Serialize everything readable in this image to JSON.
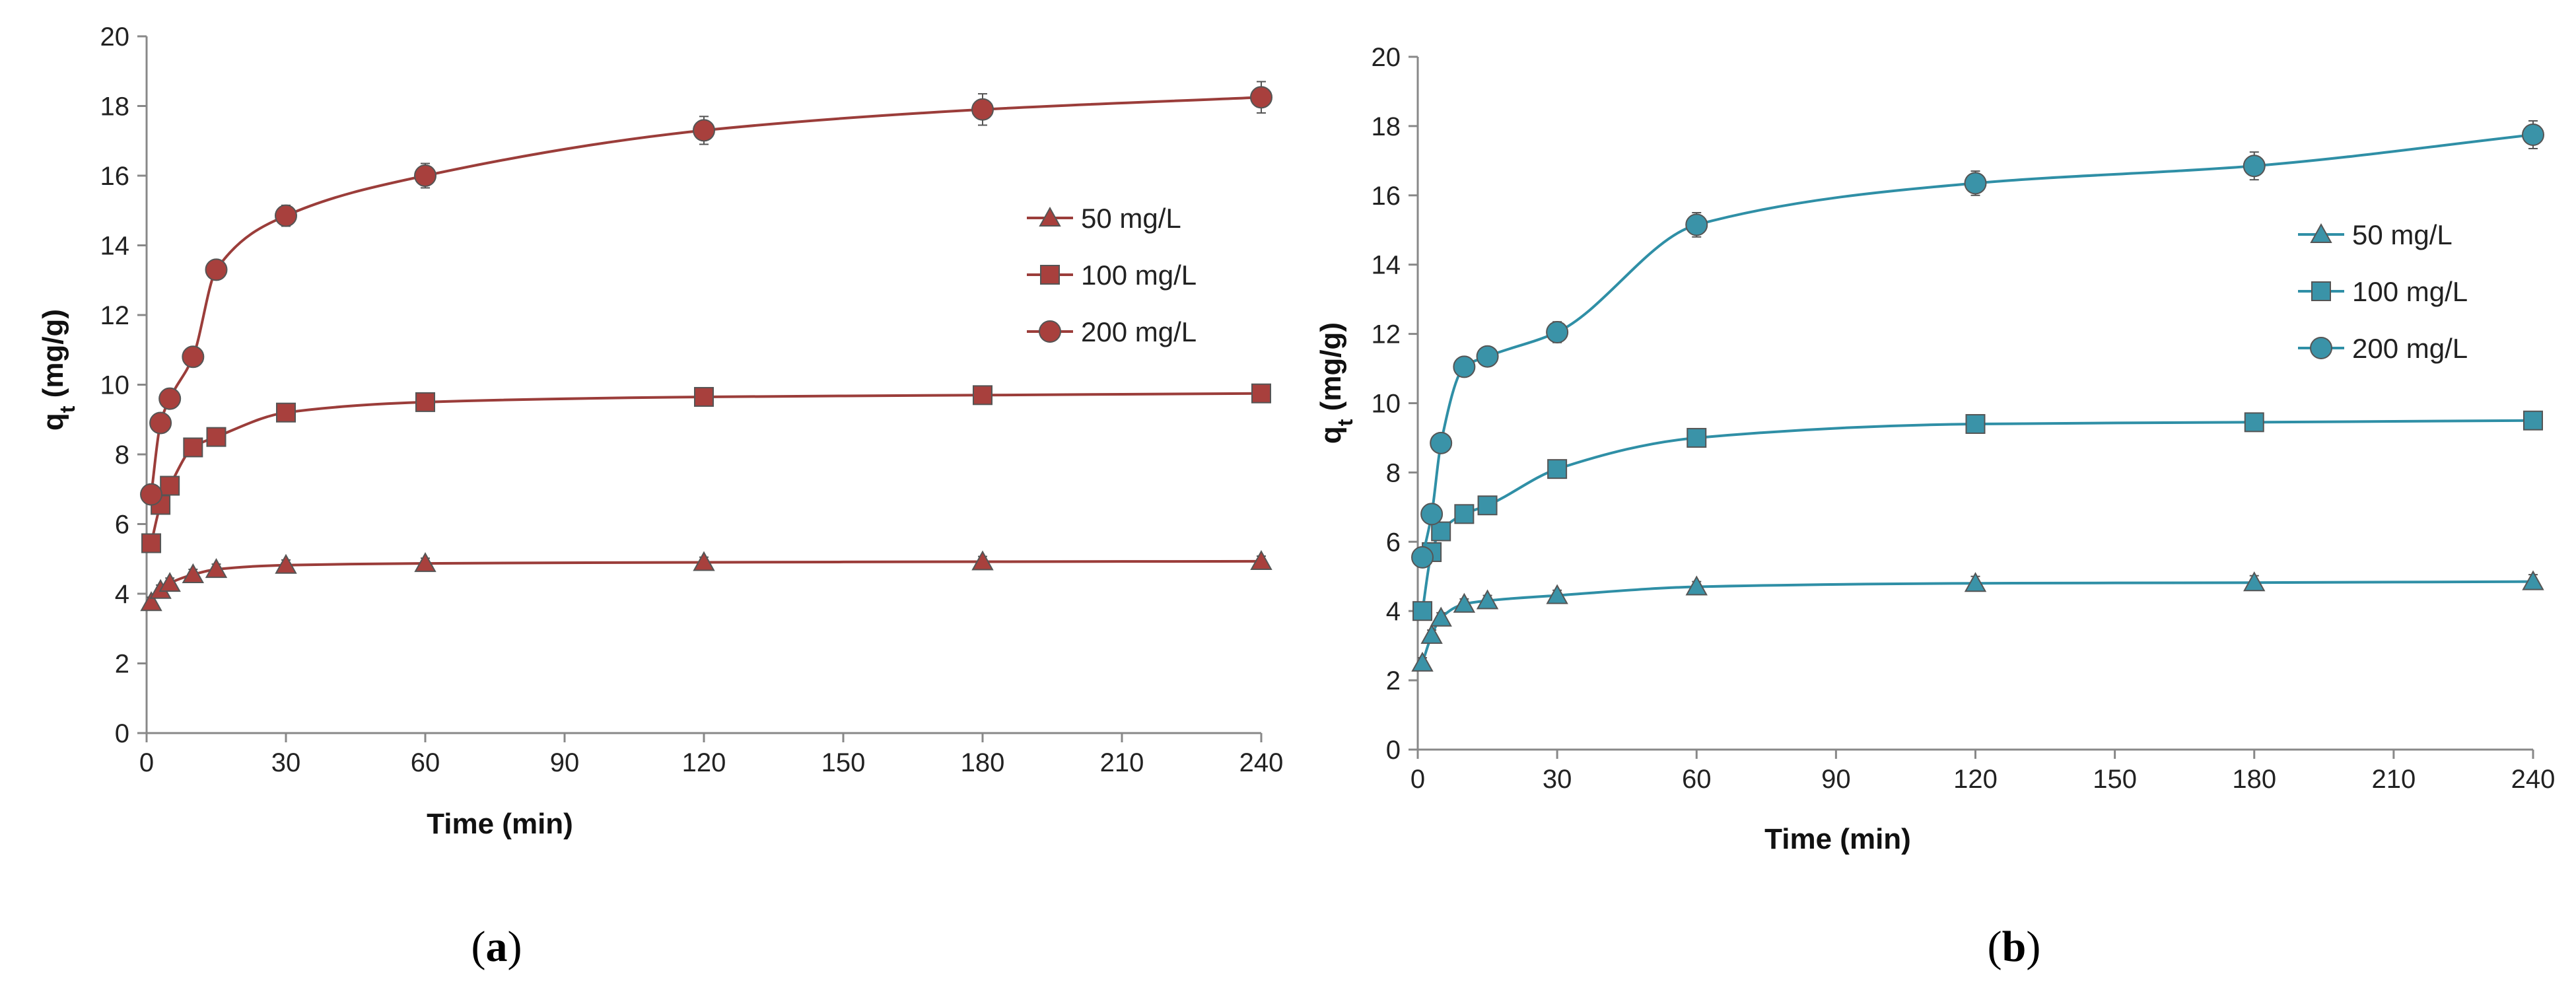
{
  "chart_data": [
    {
      "type": "line",
      "caption": {
        "open": "(",
        "letter": "a",
        "close": ")"
      },
      "title": "",
      "xlabel": "Time (min)",
      "ylabel": {
        "main": "q",
        "sub": "t",
        "rest": " (mg/g)"
      },
      "xlim": [
        0,
        240
      ],
      "ylim": [
        0,
        20
      ],
      "xticks": [
        0,
        30,
        60,
        90,
        120,
        150,
        180,
        210,
        240
      ],
      "yticks": [
        0,
        2,
        4,
        6,
        8,
        10,
        12,
        14,
        16,
        18,
        20
      ],
      "color": "#9b3d3a",
      "fill": "#a8403d",
      "legend_position": "right-middle",
      "series": [
        {
          "name": "50 mg/L",
          "marker": "triangle",
          "x": [
            1,
            3,
            5,
            10,
            15,
            30,
            60,
            120,
            180,
            240
          ],
          "y": [
            3.75,
            4.1,
            4.3,
            4.55,
            4.7,
            4.82,
            4.87,
            4.9,
            4.92,
            4.93
          ],
          "err": [
            0.15,
            0.15,
            0.15,
            0.15,
            0.15,
            0.15,
            0.15,
            0.15,
            0.15,
            0.15
          ]
        },
        {
          "name": "100 mg/L",
          "marker": "square",
          "x": [
            1,
            3,
            5,
            10,
            15,
            30,
            60,
            120,
            180,
            240
          ],
          "y": [
            5.45,
            6.55,
            7.1,
            8.2,
            8.5,
            9.2,
            9.5,
            9.65,
            9.7,
            9.75
          ],
          "err": [
            0.15,
            0.15,
            0.15,
            0.15,
            0.15,
            0.15,
            0.15,
            0.15,
            0.15,
            0.15
          ]
        },
        {
          "name": "200 mg/L",
          "marker": "circle",
          "x": [
            1,
            3,
            5,
            10,
            15,
            30,
            60,
            120,
            180,
            240
          ],
          "y": [
            6.85,
            8.9,
            9.6,
            10.8,
            13.3,
            14.85,
            16.0,
            17.3,
            17.9,
            18.25
          ],
          "err": [
            0.2,
            0.2,
            0.2,
            0.25,
            0.25,
            0.3,
            0.35,
            0.4,
            0.45,
            0.45
          ]
        }
      ]
    },
    {
      "type": "line",
      "caption": {
        "open": "(",
        "letter": "b",
        "close": ")"
      },
      "title": "",
      "xlabel": "Time (min)",
      "ylabel": {
        "main": "q",
        "sub": "t",
        "rest": " (mg/g)"
      },
      "xlim": [
        0,
        240
      ],
      "ylim": [
        0,
        20
      ],
      "xticks": [
        0,
        30,
        60,
        90,
        120,
        150,
        180,
        210,
        240
      ],
      "yticks": [
        0,
        2,
        4,
        6,
        8,
        10,
        12,
        14,
        16,
        18,
        20
      ],
      "color": "#2f8fa6",
      "fill": "#3a93a8",
      "legend_position": "right-middle",
      "series": [
        {
          "name": "50 mg/L",
          "marker": "triangle",
          "x": [
            1,
            3,
            5,
            10,
            15,
            30,
            60,
            120,
            180,
            240
          ],
          "y": [
            2.5,
            3.3,
            3.8,
            4.2,
            4.3,
            4.45,
            4.7,
            4.8,
            4.82,
            4.85
          ],
          "err": [
            0.15,
            0.15,
            0.15,
            0.15,
            0.15,
            0.15,
            0.15,
            0.2,
            0.2,
            0.2
          ]
        },
        {
          "name": "100 mg/L",
          "marker": "square",
          "x": [
            1,
            3,
            5,
            10,
            15,
            30,
            60,
            120,
            180,
            240
          ],
          "y": [
            4.0,
            5.7,
            6.3,
            6.8,
            7.05,
            8.1,
            9.0,
            9.4,
            9.45,
            9.5
          ],
          "err": [
            0.15,
            0.15,
            0.15,
            0.15,
            0.15,
            0.2,
            0.2,
            0.2,
            0.2,
            0.2
          ]
        },
        {
          "name": "200 mg/L",
          "marker": "circle",
          "x": [
            1,
            3,
            5,
            10,
            15,
            30,
            60,
            120,
            180,
            240
          ],
          "y": [
            5.55,
            6.8,
            8.85,
            11.05,
            11.35,
            12.05,
            15.15,
            16.35,
            16.85,
            17.75
          ],
          "err": [
            0.2,
            0.2,
            0.25,
            0.25,
            0.25,
            0.3,
            0.35,
            0.35,
            0.4,
            0.4
          ]
        }
      ]
    }
  ]
}
